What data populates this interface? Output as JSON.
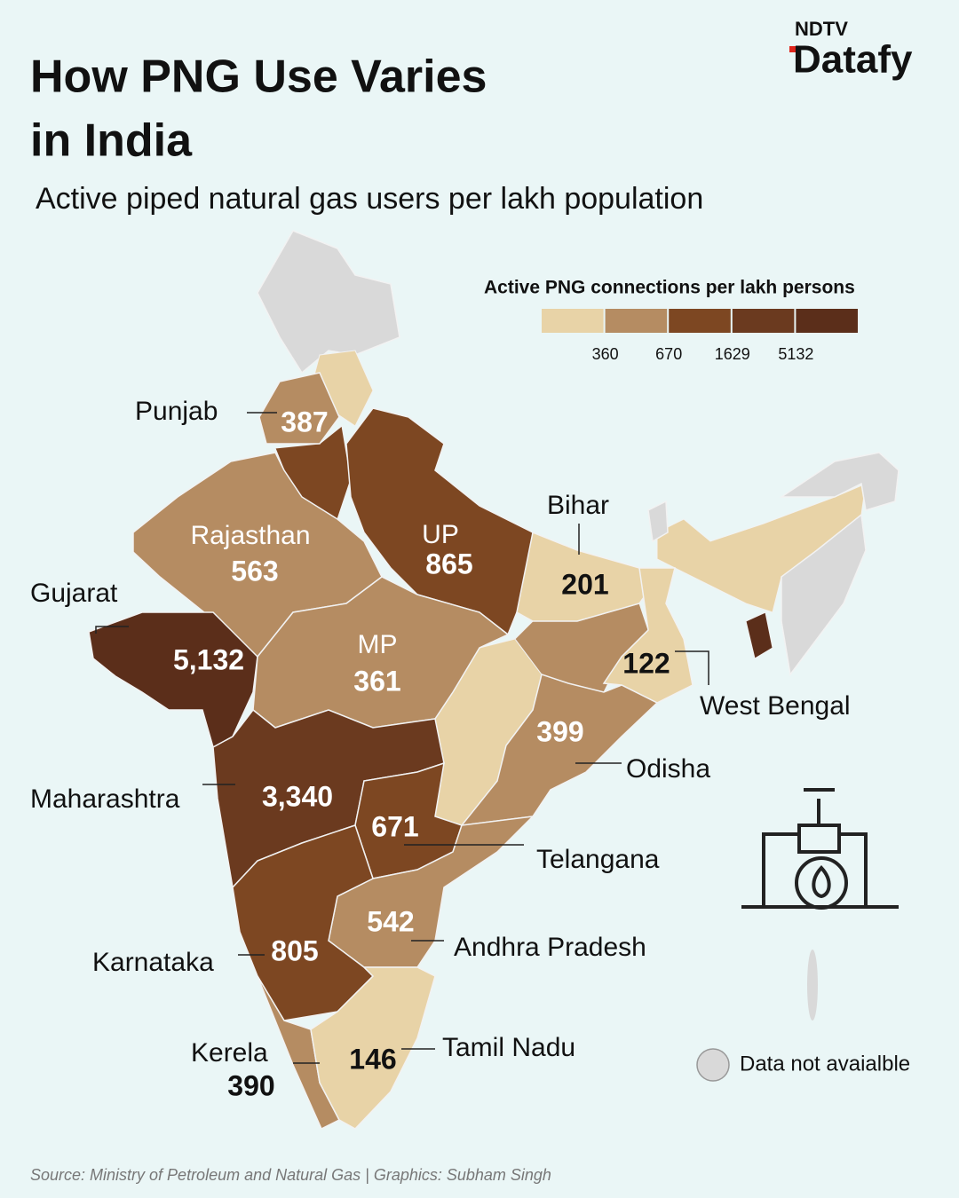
{
  "header": {
    "brand_top": "NDTV",
    "brand": "Datafy",
    "title_lines": [
      "How PNG Use Varies",
      "in India"
    ],
    "subtitle": "Active piped natural gas users per lakh population"
  },
  "legend": {
    "title": "Active PNG connections per lakh persons",
    "colors": [
      "#e8d3a7",
      "#b58c62",
      "#7d4722",
      "#6b3a1f",
      "#5b2e1a"
    ],
    "breaks": [
      360,
      670,
      1629,
      5132
    ]
  },
  "states": [
    {
      "name": "Punjab",
      "value": "387",
      "color": "#b58c62"
    },
    {
      "name": "Rajasthan",
      "value": "563",
      "color": "#b58c62"
    },
    {
      "name": "Gujarat",
      "value": "5,132",
      "color": "#5b2e1a"
    },
    {
      "name": "UP",
      "value": "865",
      "color": "#7d4722"
    },
    {
      "name": "MP",
      "value": "361",
      "color": "#b58c62"
    },
    {
      "name": "Bihar",
      "value": "201",
      "color": "#e8d3a7"
    },
    {
      "name": "West Bengal",
      "value": "122",
      "color": "#e8d3a7"
    },
    {
      "name": "Odisha",
      "value": "399",
      "color": "#b58c62"
    },
    {
      "name": "Maharashtra",
      "value": "3,340",
      "color": "#6b3a1f"
    },
    {
      "name": "Telangana",
      "value": "671",
      "color": "#7d4722"
    },
    {
      "name": "Andhra Pradesh",
      "value": "542",
      "color": "#b58c62"
    },
    {
      "name": "Karnataka",
      "value": "805",
      "color": "#7d4722"
    },
    {
      "name": "Kerela",
      "value": "390",
      "color": "#b58c62"
    },
    {
      "name": "Tamil Nadu",
      "value": "146",
      "color": "#e8d3a7"
    }
  ],
  "note": {
    "color": "#d9d9d9",
    "label": "Data not avaialble"
  },
  "source": "Source: Ministry of Petroleum and Natural Gas | Graphics: Subham Singh"
}
